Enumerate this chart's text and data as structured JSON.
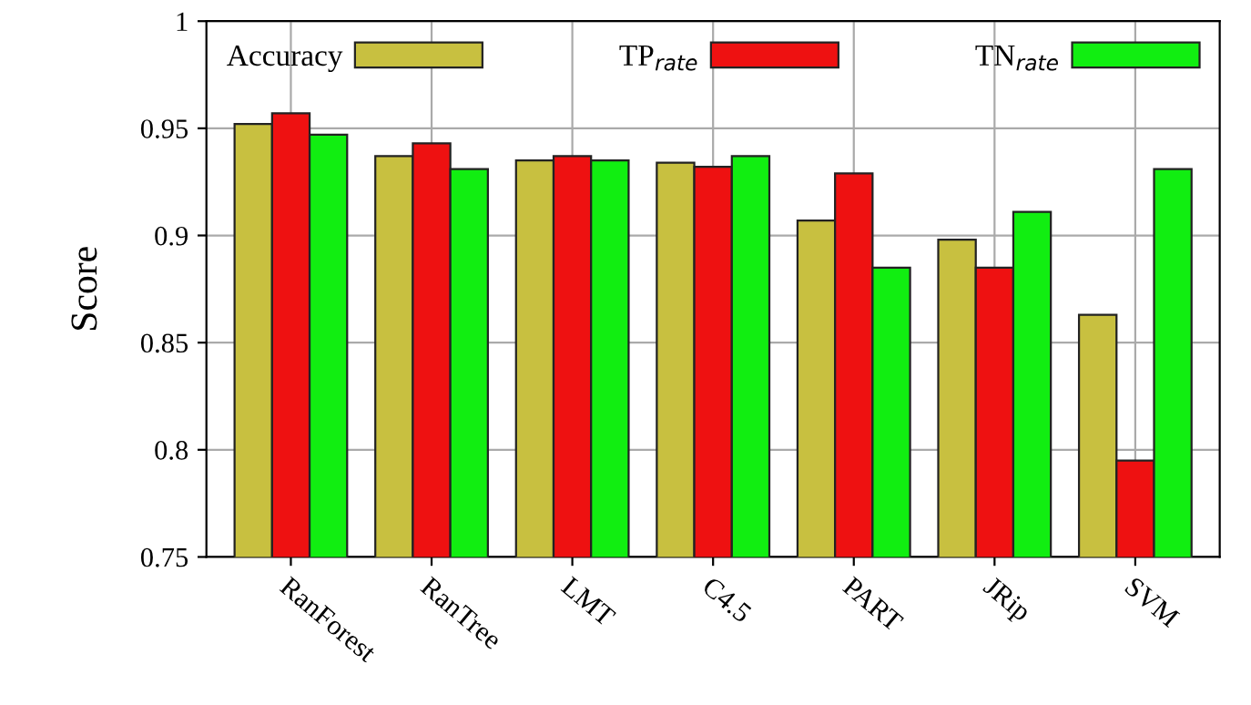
{
  "chart_data": {
    "type": "bar",
    "ylabel": "Score",
    "categories": [
      "RanForest",
      "RanTree",
      "LMT",
      "C4.5",
      "PART",
      "JRip",
      "SVM"
    ],
    "series": [
      {
        "name": "Accuracy",
        "color": "#c8c040",
        "values": [
          0.952,
          0.937,
          0.935,
          0.934,
          0.907,
          0.898,
          0.863
        ]
      },
      {
        "name": "TP$_{rate}$",
        "color": "#ee1111",
        "values": [
          0.957,
          0.943,
          0.937,
          0.932,
          0.929,
          0.885,
          0.795
        ]
      },
      {
        "name": "TN$_{rate}$",
        "color": "#11ee11",
        "values": [
          0.947,
          0.931,
          0.935,
          0.937,
          0.885,
          0.911,
          0.931
        ]
      }
    ],
    "ylim": [
      0.75,
      1
    ],
    "yticks": [
      0.75,
      0.8,
      0.85,
      0.9,
      0.95,
      1
    ],
    "grid": true,
    "legend": "top"
  }
}
